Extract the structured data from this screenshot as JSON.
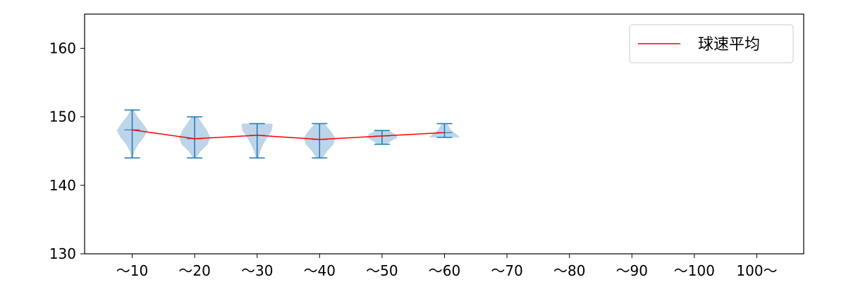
{
  "chart_data": {
    "type": "violin",
    "categories": [
      "〜10",
      "〜20",
      "〜30",
      "〜40",
      "〜50",
      "〜60",
      "〜70",
      "〜80",
      "〜90",
      "〜100",
      "100〜"
    ],
    "ylim": [
      130,
      165
    ],
    "yticks": [
      130,
      140,
      150,
      160
    ],
    "title": "",
    "xlabel": "",
    "ylabel": "",
    "legend": {
      "position": "upper-right",
      "entries": [
        {
          "label": "球速平均",
          "color": "#ff0000"
        }
      ]
    },
    "violin_color": "#1f77b4",
    "violin_fill": "#b9d3e8",
    "mean_line_color": "#ff0000",
    "violins": [
      {
        "category": "〜10",
        "min": 144,
        "max": 151,
        "mean": 148.1,
        "density": [
          [
            144,
            0.05
          ],
          [
            145,
            0.15
          ],
          [
            146,
            0.4
          ],
          [
            147,
            0.75
          ],
          [
            148,
            1.0
          ],
          [
            149,
            0.7
          ],
          [
            150,
            0.35
          ],
          [
            151,
            0.1
          ]
        ]
      },
      {
        "category": "〜20",
        "min": 144,
        "max": 150,
        "mean": 146.8,
        "density": [
          [
            144,
            0.1
          ],
          [
            145,
            0.4
          ],
          [
            146,
            0.85
          ],
          [
            147,
            1.0
          ],
          [
            148,
            0.8
          ],
          [
            149,
            0.5
          ],
          [
            150,
            0.2
          ]
        ]
      },
      {
        "category": "〜30",
        "min": 144,
        "max": 149,
        "mean": 147.3,
        "density": [
          [
            144,
            0.1
          ],
          [
            145,
            0.2
          ],
          [
            146,
            0.4
          ],
          [
            147,
            0.65
          ],
          [
            148,
            0.95
          ],
          [
            148.9,
            1.0
          ],
          [
            149,
            0.95
          ]
        ]
      },
      {
        "category": "〜40",
        "min": 144,
        "max": 149,
        "mean": 146.7,
        "density": [
          [
            144,
            0.2
          ],
          [
            145,
            0.5
          ],
          [
            146,
            0.9
          ],
          [
            147,
            1.0
          ],
          [
            148,
            0.7
          ],
          [
            149,
            0.3
          ]
        ]
      },
      {
        "category": "〜50",
        "min": 146,
        "max": 148,
        "mean": 147.2,
        "density": [
          [
            146,
            0.3
          ],
          [
            146.5,
            0.6
          ],
          [
            147,
            1.0
          ],
          [
            147.5,
            0.85
          ],
          [
            148,
            0.4
          ]
        ]
      },
      {
        "category": "〜60",
        "min": 147,
        "max": 149,
        "mean": 147.7,
        "density": [
          [
            147,
            1.0
          ],
          [
            147.5,
            0.75
          ],
          [
            148,
            0.45
          ],
          [
            148.5,
            0.3
          ],
          [
            149,
            0.2
          ]
        ]
      },
      {
        "category": "〜70",
        "min": null,
        "max": null,
        "mean": null,
        "density": []
      },
      {
        "category": "〜80",
        "min": null,
        "max": null,
        "mean": null,
        "density": []
      },
      {
        "category": "〜90",
        "min": null,
        "max": null,
        "mean": null,
        "density": []
      },
      {
        "category": "〜100",
        "min": null,
        "max": null,
        "mean": null,
        "density": []
      },
      {
        "category": "100〜",
        "min": null,
        "max": null,
        "mean": null,
        "density": []
      }
    ]
  }
}
